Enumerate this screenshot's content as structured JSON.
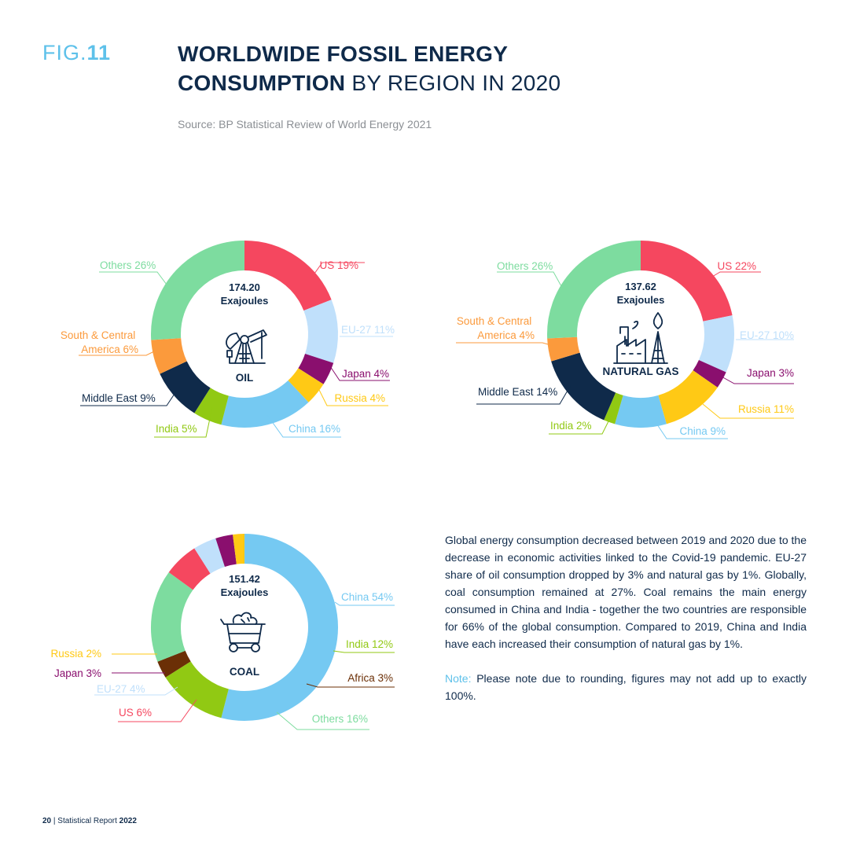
{
  "header": {
    "fig_prefix": "FIG.",
    "fig_number": "11",
    "title_bold_1": "WORLDWIDE FOSSIL ENERGY",
    "title_bold_2": "CONSUMPTION",
    "title_light_2": " BY REGION IN 2020",
    "source": "Source: BP Statistical Review of World Energy 2021"
  },
  "chart_data": [
    {
      "type": "pie",
      "variant": "donut",
      "name": "OIL",
      "total_value": "174.20",
      "total_unit": "Exajoules",
      "slices": [
        {
          "label": "US",
          "value": 19,
          "display": "US 19%",
          "color": "#f5475f"
        },
        {
          "label": "EU-27",
          "value": 11,
          "display": "EU-27 11%",
          "color": "#c0e0fb"
        },
        {
          "label": "Japan",
          "value": 4,
          "display": "Japan 4%",
          "color": "#8a0f6e"
        },
        {
          "label": "Russia",
          "value": 4,
          "display": "Russia 4%",
          "color": "#ffc915"
        },
        {
          "label": "China",
          "value": 16,
          "display": "China 16%",
          "color": "#75c9f2"
        },
        {
          "label": "India",
          "value": 5,
          "display": "India 5%",
          "color": "#91c913"
        },
        {
          "label": "Middle East",
          "value": 9,
          "display": "Middle East 9%",
          "color": "#0f2a4a"
        },
        {
          "label": "South & Central America",
          "value": 6,
          "display": [
            "South & Central",
            "America 6%"
          ],
          "color": "#fb9a3c"
        },
        {
          "label": "Others",
          "value": 26,
          "display": "Others 26%",
          "color": "#7ddc9f"
        }
      ]
    },
    {
      "type": "pie",
      "variant": "donut",
      "name": "NATURAL GAS",
      "total_value": "137.62",
      "total_unit": "Exajoules",
      "slices": [
        {
          "label": "US",
          "value": 22,
          "display": "US 22%",
          "color": "#f5475f"
        },
        {
          "label": "EU-27",
          "value": 10,
          "display": "EU-27 10%",
          "color": "#c0e0fb"
        },
        {
          "label": "Japan",
          "value": 3,
          "display": "Japan 3%",
          "color": "#8a0f6e"
        },
        {
          "label": "Russia",
          "value": 11,
          "display": "Russia 11%",
          "color": "#ffc915"
        },
        {
          "label": "China",
          "value": 9,
          "display": "China 9%",
          "color": "#75c9f2"
        },
        {
          "label": "India",
          "value": 2,
          "display": "India 2%",
          "color": "#91c913"
        },
        {
          "label": "Middle East",
          "value": 14,
          "display": "Middle East 14%",
          "color": "#0f2a4a"
        },
        {
          "label": "South & Central America",
          "value": 4,
          "display": [
            "South & Central",
            "America 4%"
          ],
          "color": "#fb9a3c"
        },
        {
          "label": "Others",
          "value": 26,
          "display": "Others 26%",
          "color": "#7ddc9f"
        }
      ]
    },
    {
      "type": "pie",
      "variant": "donut",
      "name": "COAL",
      "total_value": "151.42",
      "total_unit": "Exajoules",
      "slices": [
        {
          "label": "China",
          "value": 54,
          "display": "China 54%",
          "color": "#75c9f2"
        },
        {
          "label": "India",
          "value": 12,
          "display": "India 12%",
          "color": "#91c913"
        },
        {
          "label": "Africa",
          "value": 3,
          "display": "Africa 3%",
          "color": "#6b2f06"
        },
        {
          "label": "Others",
          "value": 16,
          "display": "Others 16%",
          "color": "#7ddc9f"
        },
        {
          "label": "US",
          "value": 6,
          "display": "US 6%",
          "color": "#f5475f"
        },
        {
          "label": "EU-27",
          "value": 4,
          "display": "EU-27 4%",
          "color": "#c0e0fb"
        },
        {
          "label": "Japan",
          "value": 3,
          "display": "Japan 3%",
          "color": "#8a0f6e"
        },
        {
          "label": "Russia",
          "value": 2,
          "display": "Russia 2%",
          "color": "#ffc915"
        }
      ]
    }
  ],
  "body": {
    "paragraph": "Global energy consumption decreased between 2019 and 2020 due to the decrease in economic activities linked to the Covid-19 pandemic. EU-27 share of oil consumption dropped by 3% and natural gas by 1%. Globally, coal consumption remained at 27%. Coal remains the main energy consumed in China and India - together the two countries are responsible for 66% of the global consumption. Compared to 2019, China and India have each increased their consumption of natural gas by 1%.",
    "note_label": "Note:",
    "note_text": " Please note due to rounding, figures may not add up to exactly 100%."
  },
  "footer": {
    "page_number": "20",
    "separator": " | ",
    "report_name": "Statistical Report ",
    "report_year": "2022"
  },
  "colors": {
    "title": "#0f2a4a",
    "accent": "#5ec1ea"
  }
}
